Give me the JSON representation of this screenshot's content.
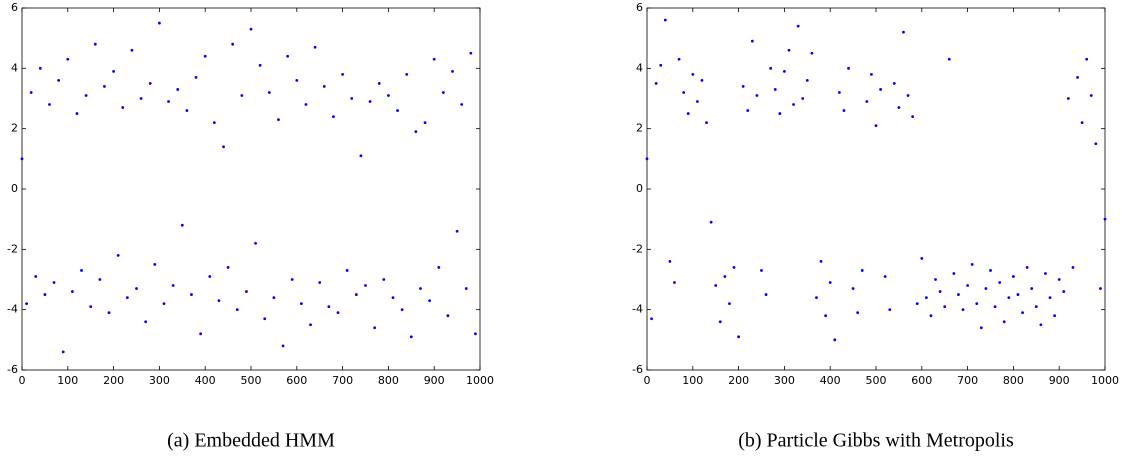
{
  "chart_data": [
    {
      "type": "scatter",
      "title": "(a) Embedded HMM",
      "color": "#0000ff",
      "xlim": [
        0,
        1000
      ],
      "xticks": [
        0,
        100,
        200,
        300,
        400,
        500,
        600,
        700,
        800,
        900,
        1000
      ],
      "ylim": [
        -6,
        6
      ],
      "yticks": [
        -6,
        -4,
        -2,
        0,
        2,
        4,
        6
      ],
      "x": [
        0,
        10,
        20,
        30,
        40,
        50,
        60,
        70,
        80,
        90,
        100,
        110,
        120,
        130,
        140,
        150,
        160,
        170,
        180,
        190,
        200,
        210,
        220,
        230,
        240,
        250,
        260,
        270,
        280,
        290,
        300,
        310,
        320,
        330,
        340,
        350,
        360,
        370,
        380,
        390,
        400,
        410,
        420,
        430,
        440,
        450,
        460,
        470,
        480,
        490,
        500,
        510,
        520,
        530,
        540,
        550,
        560,
        570,
        580,
        590,
        600,
        610,
        620,
        630,
        640,
        650,
        660,
        670,
        680,
        690,
        700,
        710,
        720,
        730,
        740,
        750,
        760,
        770,
        780,
        790,
        800,
        810,
        820,
        830,
        840,
        850,
        860,
        870,
        880,
        890,
        900,
        910,
        920,
        930,
        940,
        950,
        960,
        970,
        980,
        990
      ],
      "values": [
        1.0,
        -3.8,
        3.2,
        -2.9,
        4.0,
        -3.5,
        2.8,
        -3.1,
        3.6,
        -5.4,
        4.3,
        -3.4,
        2.5,
        -2.7,
        3.1,
        -3.9,
        4.8,
        -3.0,
        3.4,
        -4.1,
        3.9,
        -2.2,
        2.7,
        -3.6,
        4.6,
        -3.3,
        3.0,
        -4.4,
        3.5,
        -2.5,
        5.5,
        -3.8,
        2.9,
        -3.2,
        3.3,
        -1.2,
        2.6,
        -3.5,
        3.7,
        -4.8,
        4.4,
        -2.9,
        2.2,
        -3.7,
        1.4,
        -2.6,
        4.8,
        -4.0,
        3.1,
        -3.4,
        5.3,
        -1.8,
        4.1,
        -4.3,
        3.2,
        -3.6,
        2.3,
        -5.2,
        4.4,
        -3.0,
        3.6,
        -3.8,
        2.8,
        -4.5,
        4.7,
        -3.1,
        3.4,
        -3.9,
        2.4,
        -4.1,
        3.8,
        -2.7,
        3.0,
        -3.5,
        1.1,
        -3.2,
        2.9,
        -4.6,
        3.5,
        -3.0,
        3.1,
        -3.6,
        2.6,
        -4.0,
        3.8,
        -4.9,
        1.9,
        -3.3,
        2.2,
        -3.7,
        4.3,
        -2.6,
        3.2,
        -4.2,
        3.9,
        -1.4,
        2.8,
        -3.3,
        4.5,
        -4.8
      ]
    },
    {
      "type": "scatter",
      "title": "(b) Particle Gibbs with Metropolis",
      "color": "#0000ff",
      "xlim": [
        0,
        1000
      ],
      "xticks": [
        0,
        100,
        200,
        300,
        400,
        500,
        600,
        700,
        800,
        900,
        1000
      ],
      "ylim": [
        -6,
        6
      ],
      "yticks": [
        -6,
        -4,
        -2,
        0,
        2,
        4,
        6
      ],
      "x": [
        0,
        10,
        20,
        30,
        40,
        50,
        60,
        70,
        80,
        90,
        100,
        110,
        120,
        130,
        140,
        150,
        160,
        170,
        180,
        190,
        200,
        210,
        220,
        230,
        240,
        250,
        260,
        270,
        280,
        290,
        300,
        310,
        320,
        330,
        340,
        350,
        360,
        370,
        380,
        390,
        400,
        410,
        420,
        430,
        440,
        450,
        460,
        470,
        480,
        490,
        500,
        510,
        520,
        530,
        540,
        550,
        560,
        570,
        580,
        590,
        600,
        610,
        620,
        630,
        640,
        650,
        660,
        670,
        680,
        690,
        700,
        710,
        720,
        730,
        740,
        750,
        760,
        770,
        780,
        790,
        800,
        810,
        820,
        830,
        840,
        850,
        860,
        870,
        880,
        890,
        900,
        910,
        920,
        930,
        940,
        950,
        960,
        970,
        980,
        990,
        1000
      ],
      "values": [
        1.0,
        -4.3,
        3.5,
        4.1,
        5.6,
        -2.4,
        -3.1,
        4.3,
        3.2,
        2.5,
        3.8,
        2.9,
        3.6,
        2.2,
        -1.1,
        -3.2,
        -4.4,
        -2.9,
        -3.8,
        -2.6,
        -4.9,
        3.4,
        2.6,
        4.9,
        3.1,
        -2.7,
        -3.5,
        4.0,
        3.3,
        2.5,
        3.9,
        4.6,
        2.8,
        5.4,
        3.0,
        3.6,
        4.5,
        -3.6,
        -2.4,
        -4.2,
        -3.1,
        -5.0,
        3.2,
        2.6,
        4.0,
        -3.3,
        -4.1,
        -2.7,
        2.9,
        3.8,
        2.1,
        3.3,
        -2.9,
        -4.0,
        3.5,
        2.7,
        5.2,
        3.1,
        2.4,
        -3.8,
        -2.3,
        -3.6,
        -4.2,
        -3.0,
        -3.4,
        -3.9,
        4.3,
        -2.8,
        -3.5,
        -4.0,
        -3.2,
        -2.5,
        -3.8,
        -4.6,
        -3.3,
        -2.7,
        -3.9,
        -3.1,
        -4.4,
        -3.6,
        -2.9,
        -3.5,
        -4.1,
        -2.6,
        -3.3,
        -3.9,
        -4.5,
        -2.8,
        -3.6,
        -4.2,
        -3.0,
        -3.4,
        3.0,
        -2.6,
        3.7,
        2.2,
        4.3,
        3.1,
        1.5,
        -3.3,
        -1.0
      ]
    }
  ]
}
